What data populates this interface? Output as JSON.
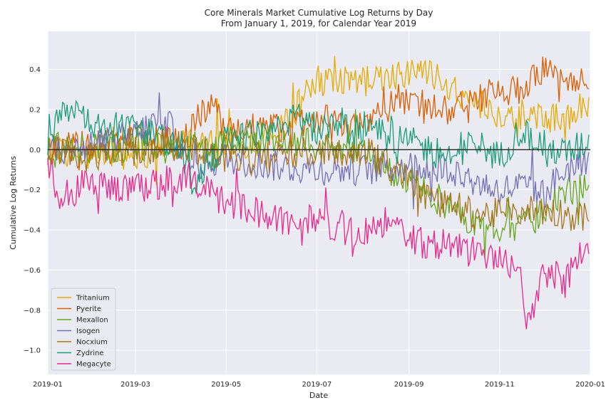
{
  "chart_data": {
    "type": "line",
    "title": "Core Minerals Market Cumulative Log Returns by Day",
    "subtitle": "From January 1, 2019, for Calendar Year 2019",
    "xlabel": "Date",
    "ylabel": "Cumulative Log Returns",
    "xlim": [
      "2019-01-01",
      "2020-01-01"
    ],
    "ylim": [
      -1.12,
      0.59
    ],
    "x_ticks": [
      "2019-01",
      "2019-03",
      "2019-05",
      "2019-07",
      "2019-09",
      "2019-11",
      "2020-01"
    ],
    "y_ticks": [
      0.4,
      0.2,
      0.0,
      -0.2,
      -0.4,
      -0.6,
      -0.8,
      -1.0
    ],
    "y_tick_labels": [
      "0.4",
      "0.2",
      "0.0",
      "−0.2",
      "−0.4",
      "−0.6",
      "−0.8",
      "−1.0"
    ],
    "reference_line": 0,
    "grid": true,
    "background": "#eaeaf2",
    "legend_position": "bottom-left",
    "series": [
      {
        "name": "Tritanium",
        "color": "#e6ab02",
        "points": [
          [
            "2019-01-01",
            0.0
          ],
          [
            "2019-02-01",
            -0.02
          ],
          [
            "2019-03-01",
            -0.02
          ],
          [
            "2019-04-01",
            0.02
          ],
          [
            "2019-05-01",
            0.02
          ],
          [
            "2019-06-01",
            0.06
          ],
          [
            "2019-06-15",
            0.18
          ],
          [
            "2019-06-25",
            0.3
          ],
          [
            "2019-07-01",
            0.34
          ],
          [
            "2019-07-15",
            0.36
          ],
          [
            "2019-08-01",
            0.34
          ],
          [
            "2019-08-15",
            0.34
          ],
          [
            "2019-09-01",
            0.4
          ],
          [
            "2019-09-15",
            0.38
          ],
          [
            "2019-10-01",
            0.3
          ],
          [
            "2019-10-15",
            0.24
          ],
          [
            "2019-11-01",
            0.14
          ],
          [
            "2019-11-15",
            0.18
          ],
          [
            "2019-12-01",
            0.16
          ],
          [
            "2019-12-15",
            0.16
          ],
          [
            "2019-12-31",
            0.24
          ]
        ]
      },
      {
        "name": "Pyerite",
        "color": "#d95f02",
        "points": [
          [
            "2019-01-01",
            0.0
          ],
          [
            "2019-02-01",
            0.02
          ],
          [
            "2019-03-01",
            0.08
          ],
          [
            "2019-04-01",
            0.02
          ],
          [
            "2019-04-20",
            0.24
          ],
          [
            "2019-05-01",
            0.1
          ],
          [
            "2019-06-01",
            0.1
          ],
          [
            "2019-07-01",
            0.16
          ],
          [
            "2019-07-15",
            0.14
          ],
          [
            "2019-08-01",
            0.1
          ],
          [
            "2019-08-15",
            0.24
          ],
          [
            "2019-09-01",
            0.26
          ],
          [
            "2019-09-15",
            0.2
          ],
          [
            "2019-10-01",
            0.2
          ],
          [
            "2019-10-15",
            0.26
          ],
          [
            "2019-11-01",
            0.28
          ],
          [
            "2019-11-15",
            0.3
          ],
          [
            "2019-12-01",
            0.4
          ],
          [
            "2019-12-15",
            0.36
          ],
          [
            "2019-12-31",
            0.36
          ]
        ]
      },
      {
        "name": "Mexallon",
        "color": "#66a61e",
        "points": [
          [
            "2019-01-01",
            0.0
          ],
          [
            "2019-02-01",
            0.0
          ],
          [
            "2019-03-01",
            0.02
          ],
          [
            "2019-04-01",
            0.0
          ],
          [
            "2019-05-01",
            0.04
          ],
          [
            "2019-06-01",
            0.06
          ],
          [
            "2019-07-01",
            0.02
          ],
          [
            "2019-08-01",
            0.0
          ],
          [
            "2019-08-20",
            -0.12
          ],
          [
            "2019-09-01",
            -0.14
          ],
          [
            "2019-09-15",
            -0.22
          ],
          [
            "2019-10-01",
            -0.3
          ],
          [
            "2019-10-15",
            -0.36
          ],
          [
            "2019-11-01",
            -0.38
          ],
          [
            "2019-11-15",
            -0.4
          ],
          [
            "2019-12-01",
            -0.3
          ],
          [
            "2019-12-15",
            -0.2
          ],
          [
            "2019-12-31",
            -0.2
          ]
        ]
      },
      {
        "name": "Isogen",
        "color": "#7570b3",
        "points": [
          [
            "2019-01-01",
            0.0
          ],
          [
            "2019-02-01",
            0.02
          ],
          [
            "2019-03-01",
            0.08
          ],
          [
            "2019-03-20",
            0.16
          ],
          [
            "2019-04-01",
            0.02
          ],
          [
            "2019-04-05",
            -0.1
          ],
          [
            "2019-05-01",
            -0.04
          ],
          [
            "2019-06-01",
            -0.08
          ],
          [
            "2019-07-01",
            -0.1
          ],
          [
            "2019-08-01",
            -0.1
          ],
          [
            "2019-09-01",
            -0.08
          ],
          [
            "2019-10-01",
            -0.1
          ],
          [
            "2019-10-15",
            -0.16
          ],
          [
            "2019-11-01",
            -0.2
          ],
          [
            "2019-11-15",
            -0.18
          ],
          [
            "2019-12-01",
            -0.22
          ],
          [
            "2019-12-15",
            -0.1
          ],
          [
            "2019-12-31",
            -0.04
          ]
        ]
      },
      {
        "name": "Nocxium",
        "color": "#a6761d",
        "points": [
          [
            "2019-01-01",
            0.0
          ],
          [
            "2019-02-01",
            -0.04
          ],
          [
            "2019-03-01",
            0.0
          ],
          [
            "2019-04-01",
            0.02
          ],
          [
            "2019-05-01",
            -0.04
          ],
          [
            "2019-06-01",
            -0.02
          ],
          [
            "2019-07-01",
            0.0
          ],
          [
            "2019-08-01",
            0.0
          ],
          [
            "2019-08-20",
            -0.08
          ],
          [
            "2019-09-01",
            -0.14
          ],
          [
            "2019-09-15",
            -0.24
          ],
          [
            "2019-10-01",
            -0.28
          ],
          [
            "2019-10-15",
            -0.32
          ],
          [
            "2019-11-01",
            -0.32
          ],
          [
            "2019-11-15",
            -0.3
          ],
          [
            "2019-12-01",
            -0.3
          ],
          [
            "2019-12-15",
            -0.32
          ],
          [
            "2019-12-31",
            -0.34
          ]
        ]
      },
      {
        "name": "Zydrine",
        "color": "#1b9e77",
        "points": [
          [
            "2019-01-01",
            0.0
          ],
          [
            "2019-01-10",
            0.2
          ],
          [
            "2019-02-01",
            0.12
          ],
          [
            "2019-03-01",
            0.1
          ],
          [
            "2019-04-01",
            0.02
          ],
          [
            "2019-04-08",
            -0.2
          ],
          [
            "2019-05-01",
            0.06
          ],
          [
            "2019-06-01",
            0.1
          ],
          [
            "2019-06-15",
            0.18
          ],
          [
            "2019-07-01",
            0.1
          ],
          [
            "2019-08-01",
            0.1
          ],
          [
            "2019-09-01",
            0.04
          ],
          [
            "2019-10-01",
            -0.04
          ],
          [
            "2019-10-15",
            0.04
          ],
          [
            "2019-11-01",
            -0.04
          ],
          [
            "2019-11-15",
            0.1
          ],
          [
            "2019-12-01",
            0.02
          ],
          [
            "2019-12-15",
            -0.02
          ],
          [
            "2019-12-31",
            0.04
          ]
        ]
      },
      {
        "name": "Megacyte",
        "color": "#e7298a",
        "points": [
          [
            "2019-01-01",
            -0.06
          ],
          [
            "2019-01-08",
            -0.22
          ],
          [
            "2019-02-01",
            -0.16
          ],
          [
            "2019-03-01",
            -0.2
          ],
          [
            "2019-04-01",
            -0.14
          ],
          [
            "2019-04-15",
            -0.2
          ],
          [
            "2019-05-01",
            -0.26
          ],
          [
            "2019-06-01",
            -0.34
          ],
          [
            "2019-07-01",
            -0.36
          ],
          [
            "2019-08-01",
            -0.42
          ],
          [
            "2019-08-15",
            -0.36
          ],
          [
            "2019-09-01",
            -0.44
          ],
          [
            "2019-09-15",
            -0.48
          ],
          [
            "2019-10-01",
            -0.46
          ],
          [
            "2019-10-15",
            -0.52
          ],
          [
            "2019-11-01",
            -0.52
          ],
          [
            "2019-11-15",
            -0.6
          ],
          [
            "2019-11-18",
            -0.9
          ],
          [
            "2019-12-01",
            -0.6
          ],
          [
            "2019-12-15",
            -0.66
          ],
          [
            "2019-12-31",
            -0.46
          ]
        ]
      }
    ]
  }
}
